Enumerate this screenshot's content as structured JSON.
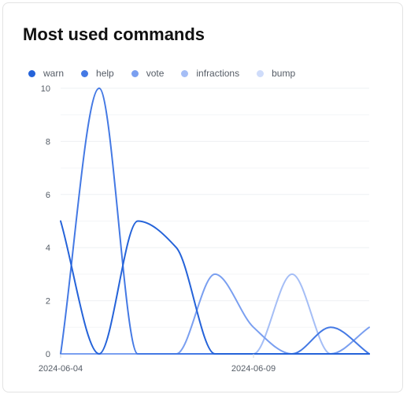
{
  "card": {
    "title": "Most used commands"
  },
  "chart_data": {
    "type": "line",
    "title": "Most used commands",
    "xlabel": "",
    "ylabel": "",
    "x": [
      "2024-06-04",
      "2024-06-05",
      "2024-06-06",
      "2024-06-07",
      "2024-06-08",
      "2024-06-09",
      "2024-06-10",
      "2024-06-11",
      "2024-06-12"
    ],
    "x_tick_labels": [
      "2024-06-04",
      "2024-06-09"
    ],
    "ylim": [
      0,
      10
    ],
    "y_ticks": [
      0,
      2,
      4,
      6,
      8,
      10
    ],
    "grid": true,
    "legend_position": "top-left",
    "series": [
      {
        "name": "warn",
        "color": "#2563d9",
        "values": [
          5,
          0,
          5,
          4,
          0,
          0,
          0,
          0,
          0
        ]
      },
      {
        "name": "help",
        "color": "#4479e4",
        "values": [
          0,
          10,
          0,
          0,
          0,
          0,
          0,
          1,
          0
        ]
      },
      {
        "name": "vote",
        "color": "#7a9ff0",
        "values": [
          0,
          0,
          0,
          0,
          3,
          1,
          0,
          0,
          1
        ]
      },
      {
        "name": "infractions",
        "color": "#a5bef6",
        "values": [
          0,
          0,
          0,
          0,
          0,
          0,
          3,
          0,
          0
        ]
      },
      {
        "name": "bump",
        "color": "#cfdcfa",
        "values": [
          0,
          0,
          0,
          0,
          0,
          0,
          0,
          0,
          0
        ]
      }
    ]
  }
}
